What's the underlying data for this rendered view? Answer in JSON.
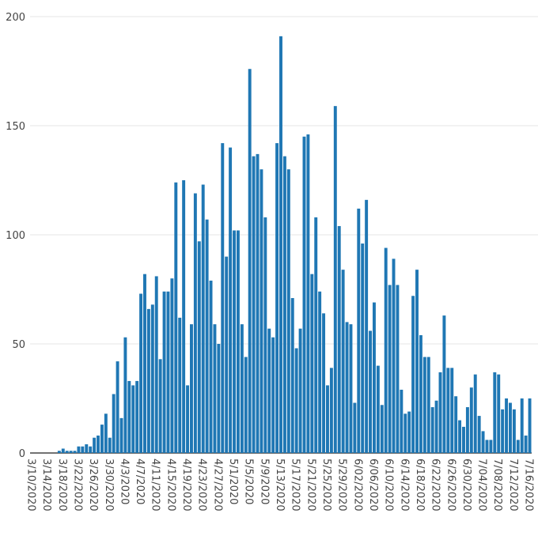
{
  "colors": {
    "bar": "#1f77b4",
    "grid": "#e6e6e6",
    "axis": "#444444",
    "background": "#ffffff"
  },
  "chart_data": {
    "type": "bar",
    "title": "",
    "xlabel": "",
    "ylabel": "",
    "start_date": "3/10/2020",
    "ylim": [
      0,
      200
    ],
    "y_ticks": [
      0,
      50,
      100,
      150,
      200
    ],
    "x_tick_labels": [
      "3/10/2020",
      "3/14/2020",
      "3/18/2020",
      "3/22/2020",
      "3/26/2020",
      "3/30/2020",
      "4/3/2020",
      "4/7/2020",
      "4/11/2020",
      "4/15/2020",
      "4/19/2020",
      "4/23/2020",
      "4/27/2020",
      "5/1/2020",
      "5/5/2020",
      "5/9/2020",
      "5/13/2020",
      "5/17/2020",
      "5/21/2020",
      "5/25/2020",
      "5/29/2020",
      "6/02/2020",
      "6/06/2020",
      "6/10/2020",
      "6/14/2020",
      "6/18/2020",
      "6/22/2020",
      "6/26/2020",
      "6/30/2020",
      "7/04/2020",
      "7/08/2020",
      "7/12/2020",
      "7/16/2020"
    ],
    "grid": true,
    "legend": "none",
    "values": [
      0,
      0,
      0,
      0,
      0,
      0,
      0,
      1,
      2,
      1,
      1,
      1,
      3,
      3,
      4,
      3,
      7,
      8,
      13,
      18,
      7,
      27,
      42,
      16,
      53,
      33,
      31,
      33,
      73,
      82,
      66,
      68,
      81,
      43,
      74,
      74,
      80,
      124,
      62,
      125,
      31,
      59,
      119,
      97,
      123,
      107,
      79,
      59,
      50,
      142,
      90,
      140,
      102,
      102,
      59,
      44,
      176,
      136,
      137,
      130,
      108,
      57,
      53,
      142,
      191,
      136,
      130,
      71,
      48,
      57,
      145,
      146,
      82,
      108,
      74,
      64,
      31,
      39,
      159,
      104,
      84,
      60,
      59,
      23,
      112,
      96,
      116,
      56,
      69,
      40,
      22,
      94,
      77,
      89,
      77,
      29,
      18,
      19,
      72,
      84,
      54,
      44,
      44,
      21,
      24,
      37,
      63,
      39,
      39,
      26,
      15,
      12,
      21,
      30,
      36,
      17,
      10,
      6,
      6,
      37,
      36,
      20,
      25,
      23,
      20,
      6,
      25,
      8,
      25
    ]
  }
}
